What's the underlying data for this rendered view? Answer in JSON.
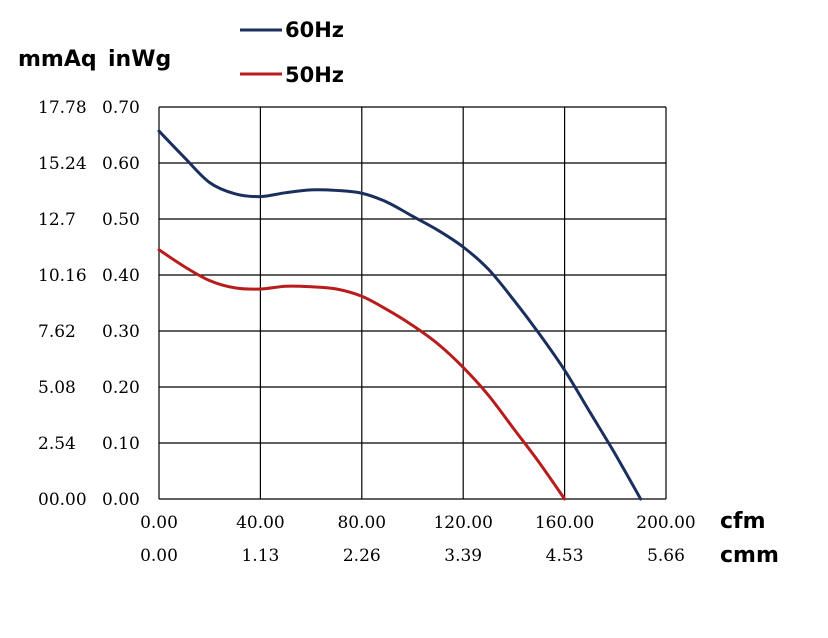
{
  "chart_data": {
    "type": "line",
    "x_axis": {
      "unit": "cfm",
      "secondary_unit": "cmm",
      "range": [
        0,
        200
      ],
      "ticks": [
        0,
        40,
        80,
        120,
        160,
        200
      ],
      "tick_labels": [
        "0.00",
        "40.00",
        "80.00",
        "120.00",
        "160.00",
        "200.00"
      ],
      "secondary_tick_labels": [
        "0.00",
        "1.13",
        "2.26",
        "3.39",
        "4.53",
        "5.66"
      ]
    },
    "y_axis": {
      "unit": "inWg",
      "secondary_unit": "mmAq",
      "range": [
        0,
        0.7
      ],
      "ticks": [
        0,
        0.1,
        0.2,
        0.3,
        0.4,
        0.5,
        0.6,
        0.7
      ],
      "tick_labels": [
        "0.00",
        "0.10",
        "0.20",
        "0.30",
        "0.40",
        "0.50",
        "0.60",
        "0.70"
      ],
      "secondary_tick_labels": [
        "00.00",
        "2.54",
        "5.08",
        "7.62",
        "10.16",
        "12.7",
        "15.24",
        "17.78"
      ]
    },
    "grid": true,
    "legend_position": "top",
    "series": [
      {
        "name": "60Hz",
        "color": "#1b2f5e",
        "points": [
          [
            0,
            0.657
          ],
          [
            10,
            0.61
          ],
          [
            20,
            0.565
          ],
          [
            30,
            0.545
          ],
          [
            40,
            0.54
          ],
          [
            50,
            0.547
          ],
          [
            60,
            0.552
          ],
          [
            70,
            0.551
          ],
          [
            80,
            0.546
          ],
          [
            90,
            0.53
          ],
          [
            100,
            0.505
          ],
          [
            110,
            0.48
          ],
          [
            120,
            0.45
          ],
          [
            130,
            0.41
          ],
          [
            140,
            0.355
          ],
          [
            150,
            0.295
          ],
          [
            160,
            0.23
          ],
          [
            170,
            0.155
          ],
          [
            180,
            0.08
          ],
          [
            190,
            0.0
          ]
        ]
      },
      {
        "name": "50Hz",
        "color": "#b81c1c",
        "points": [
          [
            0,
            0.445
          ],
          [
            10,
            0.415
          ],
          [
            20,
            0.39
          ],
          [
            30,
            0.377
          ],
          [
            40,
            0.375
          ],
          [
            50,
            0.38
          ],
          [
            60,
            0.379
          ],
          [
            70,
            0.375
          ],
          [
            80,
            0.362
          ],
          [
            90,
            0.338
          ],
          [
            100,
            0.31
          ],
          [
            110,
            0.277
          ],
          [
            120,
            0.235
          ],
          [
            130,
            0.185
          ],
          [
            140,
            0.125
          ],
          [
            150,
            0.065
          ],
          [
            160,
            0.0
          ]
        ]
      }
    ]
  }
}
